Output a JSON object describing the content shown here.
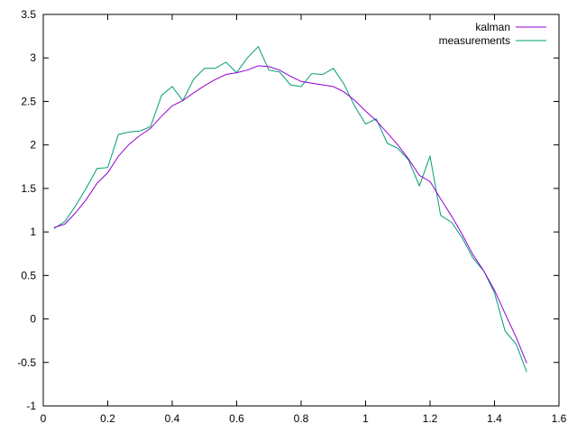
{
  "chart_data": {
    "type": "line",
    "title": "",
    "xlabel": "",
    "ylabel": "",
    "xlim": [
      0,
      1.6
    ],
    "ylim": [
      -1,
      3.5
    ],
    "x_ticks": [
      "0",
      "0.2",
      "0.4",
      "0.6",
      "0.8",
      "1",
      "1.2",
      "1.4",
      "1.6"
    ],
    "y_ticks": [
      "-1",
      "-0.5",
      "0",
      "0.5",
      "1",
      "1.5",
      "2",
      "2.5",
      "3",
      "3.5"
    ],
    "grid": false,
    "legend_position": "top-right",
    "series": [
      {
        "name": "kalman",
        "color": "#9400d3",
        "x": [
          0.033,
          0.067,
          0.1,
          0.133,
          0.167,
          0.2,
          0.233,
          0.267,
          0.3,
          0.333,
          0.367,
          0.4,
          0.433,
          0.467,
          0.5,
          0.533,
          0.567,
          0.6,
          0.633,
          0.667,
          0.7,
          0.733,
          0.767,
          0.8,
          0.833,
          0.867,
          0.9,
          0.933,
          0.967,
          1.0,
          1.033,
          1.067,
          1.1,
          1.133,
          1.167,
          1.2,
          1.233,
          1.267,
          1.3,
          1.333,
          1.367,
          1.4,
          1.433,
          1.467,
          1.5
        ],
        "y": [
          1.05,
          1.09,
          1.22,
          1.37,
          1.56,
          1.68,
          1.87,
          2.01,
          2.11,
          2.19,
          2.33,
          2.45,
          2.51,
          2.6,
          2.68,
          2.75,
          2.81,
          2.83,
          2.86,
          2.91,
          2.9,
          2.86,
          2.79,
          2.73,
          2.71,
          2.69,
          2.67,
          2.61,
          2.51,
          2.39,
          2.28,
          2.14,
          2.0,
          1.84,
          1.65,
          1.58,
          1.38,
          1.18,
          0.97,
          0.74,
          0.55,
          0.33,
          0.06,
          -0.21,
          -0.51
        ]
      },
      {
        "name": "measurements",
        "color": "#009e73",
        "x": [
          0.033,
          0.067,
          0.1,
          0.133,
          0.167,
          0.2,
          0.233,
          0.267,
          0.3,
          0.333,
          0.367,
          0.4,
          0.433,
          0.467,
          0.5,
          0.533,
          0.567,
          0.6,
          0.633,
          0.667,
          0.7,
          0.733,
          0.767,
          0.8,
          0.833,
          0.867,
          0.9,
          0.933,
          0.967,
          1.0,
          1.033,
          1.067,
          1.1,
          1.133,
          1.167,
          1.2,
          1.233,
          1.267,
          1.3,
          1.333,
          1.367,
          1.4,
          1.433,
          1.467,
          1.5
        ],
        "y": [
          1.04,
          1.12,
          1.3,
          1.5,
          1.73,
          1.74,
          2.12,
          2.15,
          2.16,
          2.21,
          2.57,
          2.67,
          2.51,
          2.76,
          2.88,
          2.88,
          2.95,
          2.83,
          3.0,
          3.13,
          2.86,
          2.84,
          2.69,
          2.67,
          2.82,
          2.81,
          2.88,
          2.7,
          2.44,
          2.24,
          2.3,
          2.02,
          1.96,
          1.83,
          1.53,
          1.87,
          1.19,
          1.11,
          0.93,
          0.7,
          0.55,
          0.3,
          -0.14,
          -0.29,
          -0.61
        ]
      }
    ]
  }
}
